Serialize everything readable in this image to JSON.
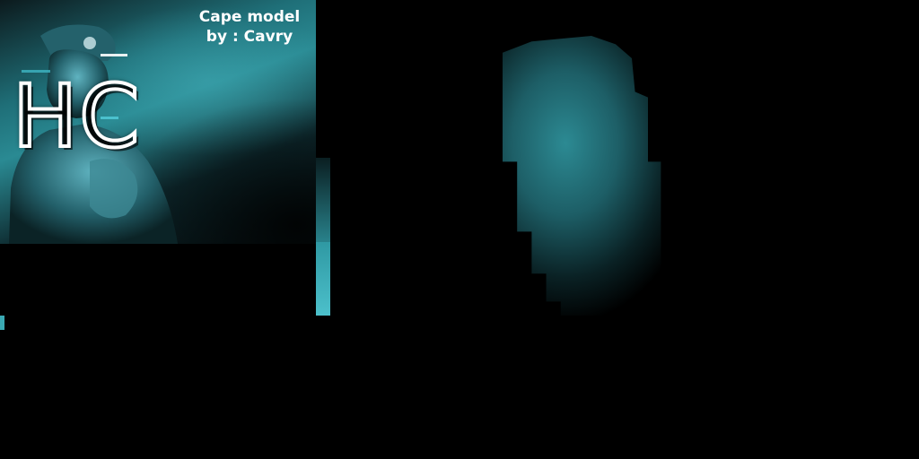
{
  "caption": {
    "line1": "Cape model",
    "line2": "by : Cavry"
  },
  "logo": {
    "text": "HC"
  },
  "colors": {
    "background": "#000000",
    "teal": "#2a8a93",
    "teal_light": "#46b4bf",
    "text": "#ffffff"
  }
}
